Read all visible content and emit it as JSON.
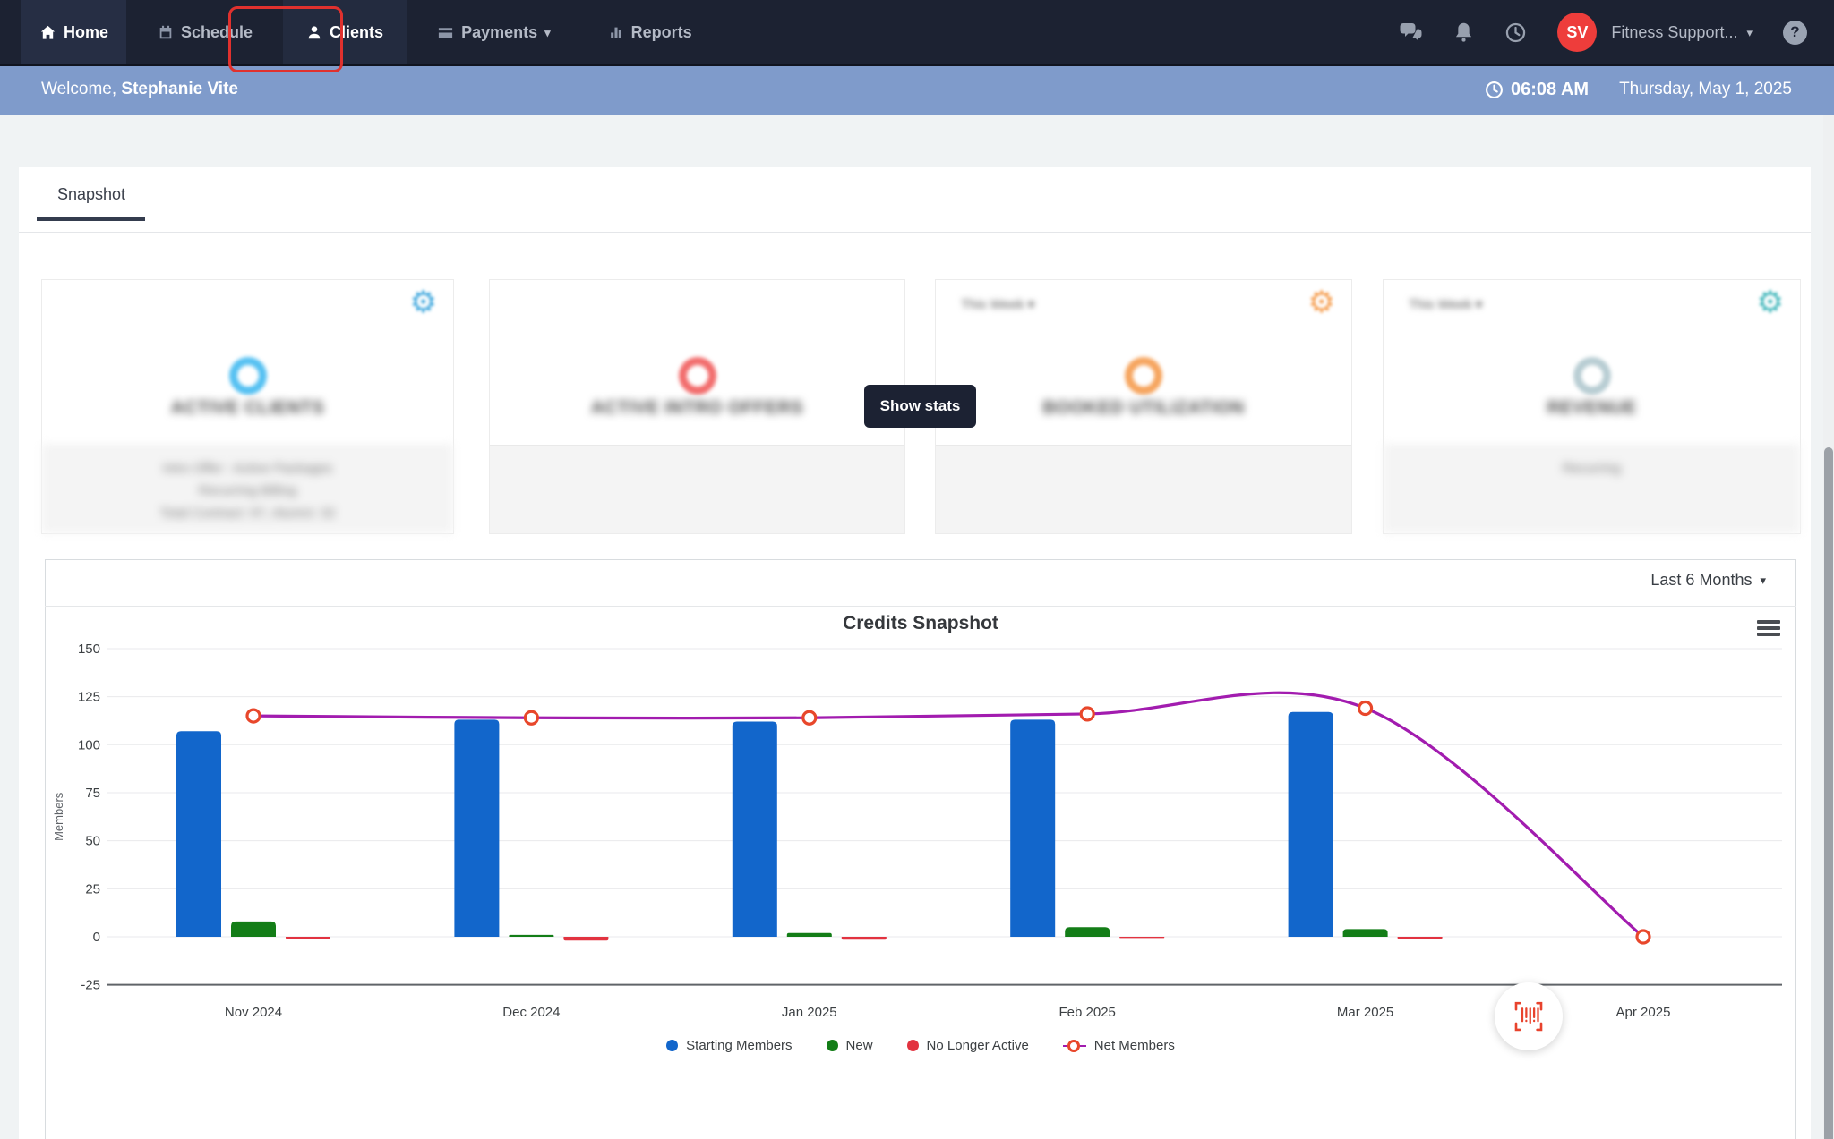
{
  "nav": {
    "items": [
      {
        "label": "Home"
      },
      {
        "label": "Schedule"
      },
      {
        "label": "Clients"
      },
      {
        "label": "Payments"
      },
      {
        "label": "Reports"
      }
    ],
    "avatar_initials": "SV",
    "avatar_color": "#ee3d3b",
    "account_label": "Fitness Support..."
  },
  "welcome_bar": {
    "greeting_prefix": "Welcome,",
    "user_name": "Stephanie Vite",
    "time": "06:08 AM",
    "date": "Thursday, May 1, 2025"
  },
  "tabs": {
    "active_label": "Snapshot"
  },
  "overlay": {
    "show_stats_label": "Show stats"
  },
  "stat_cards": [
    {
      "title": "ACTIVE CLIENTS",
      "accent": "#56c1f2",
      "gear_color": "#3fa7dd",
      "details": [
        "Intro Offer : Active Packages",
        "Recurring Billing",
        "Total Contract: 97, Alumni: 32"
      ]
    },
    {
      "title": "ACTIVE INTRO OFFERS",
      "accent": "#f26d6d",
      "gear_color": "",
      "details": []
    },
    {
      "title": "BOOKED UTILIZATION",
      "accent": "#f6a55f",
      "gear_color": "#f59d4e",
      "period_label": "This Week",
      "details": []
    },
    {
      "title": "REVENUE",
      "accent": "#b8cdd3",
      "gear_color": "#3fb6ba",
      "period_label": "This Week",
      "details": [
        "Recurring"
      ]
    }
  ],
  "chart_panel": {
    "range_label": "Last 6 Months"
  },
  "chart_data": {
    "type": "bar+line",
    "title": "Credits Snapshot",
    "ylabel": "Members",
    "ylim": [
      -25,
      150
    ],
    "yticks": [
      150,
      125,
      100,
      75,
      50,
      25,
      0,
      -25
    ],
    "grid": true,
    "legend_position": "bottom",
    "categories": [
      "Nov 2024",
      "Dec 2024",
      "Jan 2025",
      "Feb 2025",
      "Mar 2025",
      "Apr 2025"
    ],
    "series": [
      {
        "name": "Starting Members",
        "type": "bar",
        "color": "#1266cb",
        "values": [
          107,
          113,
          112,
          113,
          117,
          null
        ]
      },
      {
        "name": "New",
        "type": "bar",
        "color": "#137d17",
        "values": [
          8,
          1,
          2,
          5,
          4,
          null
        ]
      },
      {
        "name": "No Longer Active",
        "type": "bar",
        "color": "#e23340",
        "values": [
          -1,
          -2,
          -1.5,
          -0.5,
          -1,
          null
        ]
      },
      {
        "name": "Net Members",
        "type": "line",
        "color": "#a21caf",
        "marker_color": "#e8472b",
        "values": [
          115,
          114,
          114,
          116,
          119,
          0
        ]
      }
    ]
  }
}
